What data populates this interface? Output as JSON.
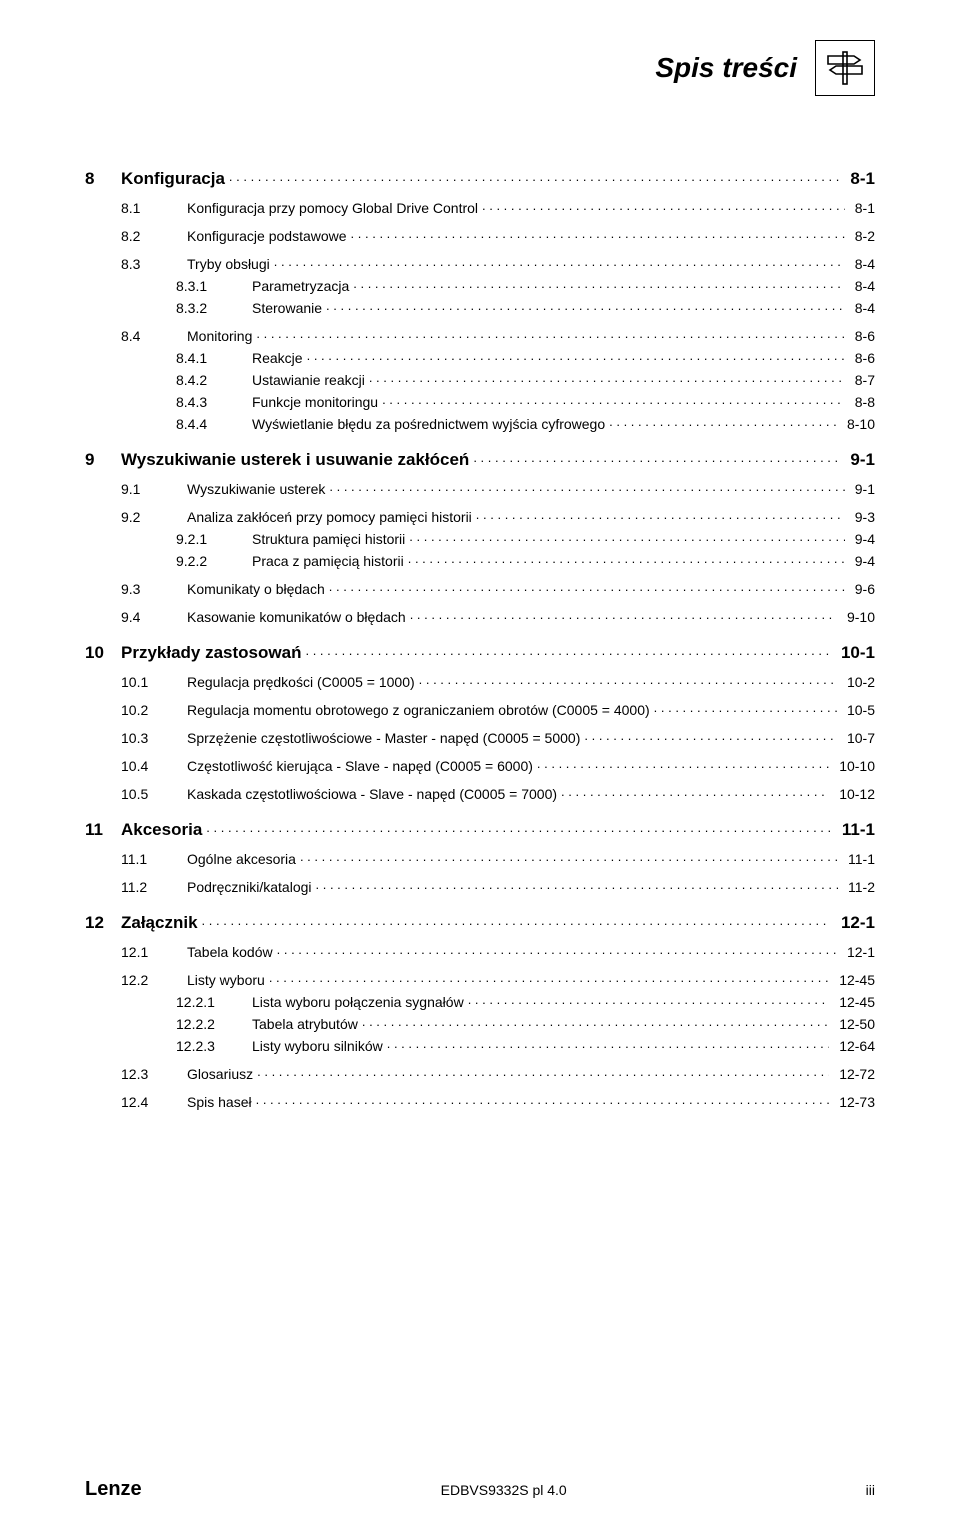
{
  "header": {
    "title": "Spis treści"
  },
  "colors": {
    "text": "#000000",
    "background": "#ffffff",
    "border": "#000000"
  },
  "typography": {
    "header_fontsize": 28,
    "chapter_fontsize": 17,
    "body_fontsize": 14
  },
  "toc": [
    {
      "type": "chapter",
      "num": "8",
      "title": "Konfiguracja",
      "page": "8-1"
    },
    {
      "type": "section",
      "num": "8.1",
      "title": "Konfiguracja przy pomocy Global Drive Control",
      "page": "8-1"
    },
    {
      "type": "section",
      "num": "8.2",
      "title": "Konfiguracje podstawowe",
      "page": "8-2"
    },
    {
      "type": "section",
      "num": "8.3",
      "title": "Tryby obsługi",
      "page": "8-4"
    },
    {
      "type": "sub",
      "num": "8.3.1",
      "title": "Parametryzacja",
      "page": "8-4"
    },
    {
      "type": "sub",
      "num": "8.3.2",
      "title": "Sterowanie",
      "page": "8-4"
    },
    {
      "type": "section",
      "num": "8.4",
      "title": "Monitoring",
      "page": "8-6"
    },
    {
      "type": "sub",
      "num": "8.4.1",
      "title": "Reakcje",
      "page": "8-6"
    },
    {
      "type": "sub",
      "num": "8.4.2",
      "title": "Ustawianie reakcji",
      "page": "8-7"
    },
    {
      "type": "sub",
      "num": "8.4.3",
      "title": "Funkcje monitoringu",
      "page": "8-8"
    },
    {
      "type": "sub",
      "num": "8.4.4",
      "title": "Wyświetlanie błędu za pośrednictwem wyjścia cyfrowego",
      "page": "8-10"
    },
    {
      "type": "chapter",
      "num": "9",
      "title": "Wyszukiwanie usterek i usuwanie zakłóceń",
      "page": "9-1"
    },
    {
      "type": "section",
      "num": "9.1",
      "title": "Wyszukiwanie usterek",
      "page": "9-1"
    },
    {
      "type": "section",
      "num": "9.2",
      "title": "Analiza zakłóceń przy pomocy pamięci historii",
      "page": "9-3"
    },
    {
      "type": "sub",
      "num": "9.2.1",
      "title": "Struktura pamięci historii",
      "page": "9-4"
    },
    {
      "type": "sub",
      "num": "9.2.2",
      "title": "Praca z pamięcią historii",
      "page": "9-4"
    },
    {
      "type": "section",
      "num": "9.3",
      "title": "Komunikaty o błędach",
      "page": "9-6"
    },
    {
      "type": "section",
      "num": "9.4",
      "title": "Kasowanie komunikatów o błędach",
      "page": "9-10"
    },
    {
      "type": "chapter",
      "num": "10",
      "title": "Przykłady zastosowań",
      "page": "10-1"
    },
    {
      "type": "section",
      "num": "10.1",
      "title": "Regulacja prędkości (C0005 = 1000)",
      "page": "10-2"
    },
    {
      "type": "section",
      "num": "10.2",
      "title": "Regulacja momentu obrotowego z ograniczaniem obrotów (C0005 = 4000)",
      "page": "10-5"
    },
    {
      "type": "section",
      "num": "10.3",
      "title": "Sprzężenie częstotliwościowe - Master - napęd (C0005 = 5000)",
      "page": "10-7"
    },
    {
      "type": "section",
      "num": "10.4",
      "title": "Częstotliwość kierująca - Slave - napęd (C0005 = 6000)",
      "page": "10-10"
    },
    {
      "type": "section",
      "num": "10.5",
      "title": "Kaskada częstotliwościowa - Slave - napęd (C0005 = 7000)",
      "page": "10-12"
    },
    {
      "type": "chapter",
      "num": "11",
      "title": "Akcesoria",
      "page": "11-1"
    },
    {
      "type": "section",
      "num": "11.1",
      "title": "Ogólne akcesoria",
      "page": "11-1"
    },
    {
      "type": "section",
      "num": "11.2",
      "title": "Podręczniki/katalogi",
      "page": "11-2"
    },
    {
      "type": "chapter",
      "num": "12",
      "title": "Załącznik",
      "page": "12-1"
    },
    {
      "type": "section",
      "num": "12.1",
      "title": "Tabela kodów",
      "page": "12-1"
    },
    {
      "type": "section",
      "num": "12.2",
      "title": "Listy wyboru",
      "page": "12-45"
    },
    {
      "type": "sub",
      "num": "12.2.1",
      "title": "Lista wyboru połączenia sygnałów",
      "page": "12-45"
    },
    {
      "type": "sub",
      "num": "12.2.2",
      "title": "Tabela atrybutów",
      "page": "12-50"
    },
    {
      "type": "sub",
      "num": "12.2.3",
      "title": "Listy wyboru silników",
      "page": "12-64"
    },
    {
      "type": "section",
      "num": "12.3",
      "title": "Glosariusz",
      "page": "12-72"
    },
    {
      "type": "section",
      "num": "12.4",
      "title": "Spis haseł",
      "page": "12-73"
    }
  ],
  "footer": {
    "brand": "Lenze",
    "center": "EDBVS9332S pl 4.0",
    "page_number": "iii"
  }
}
